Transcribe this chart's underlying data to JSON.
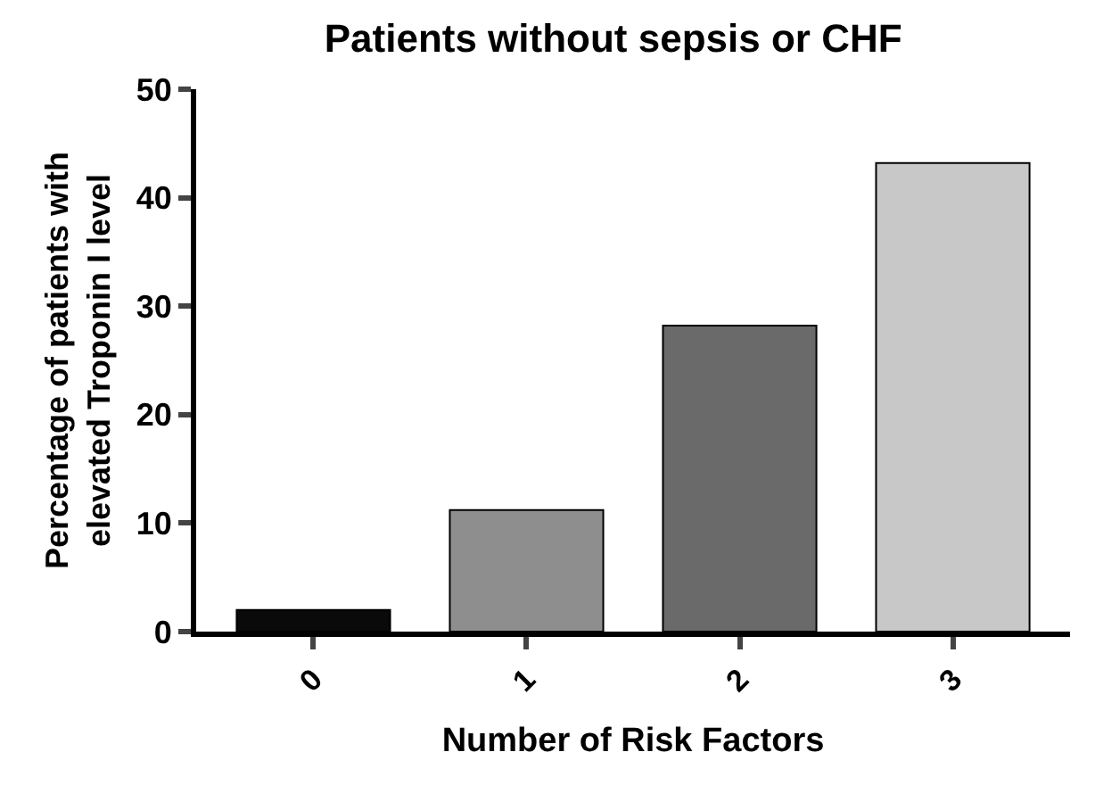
{
  "chart_data": {
    "type": "bar",
    "title": "Patients without sepsis or CHF",
    "xlabel": "Number of Risk Factors",
    "ylabel": "Percentage of patients with elevated Troponin I level",
    "categories": [
      "0",
      "1",
      "2",
      "3"
    ],
    "values": [
      2,
      11.2,
      28.2,
      43.2
    ],
    "colors": [
      "#0a0a0a",
      "#8e8e8e",
      "#6a6a6a",
      "#c8c8c8"
    ],
    "ylim": [
      0,
      50
    ],
    "yticks": [
      0,
      10,
      20,
      30,
      40,
      50
    ],
    "grid": false
  }
}
